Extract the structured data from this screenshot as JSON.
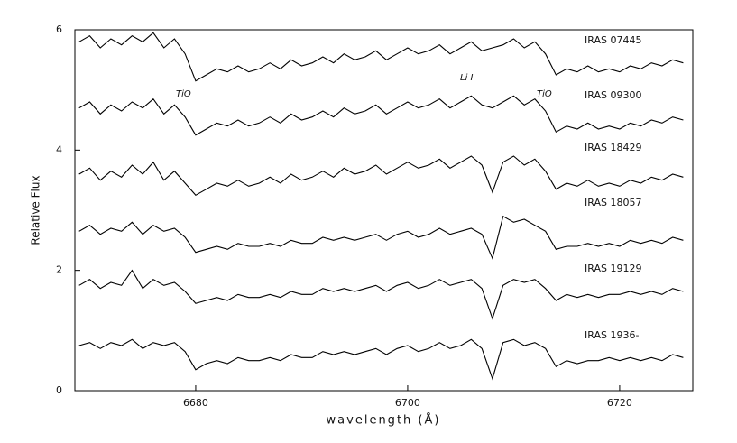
{
  "chart_data": {
    "type": "line",
    "x_label": "wavelength (Å)",
    "y_label": "Relative Flux",
    "annotations": [
      "TiO",
      "Li I",
      "TiO"
    ],
    "x": [
      6669,
      6670,
      6671,
      6672,
      6673,
      6674,
      6675,
      6676,
      6677,
      6678,
      6679,
      6680,
      6681,
      6682,
      6683,
      6684,
      6685,
      6686,
      6687,
      6688,
      6689,
      6690,
      6691,
      6692,
      6693,
      6694,
      6695,
      6696,
      6697,
      6698,
      6699,
      6700,
      6701,
      6702,
      6703,
      6704,
      6705,
      6706,
      6707,
      6708,
      6709,
      6710,
      6711,
      6712,
      6713,
      6714,
      6715,
      6716,
      6717,
      6718,
      6719,
      6720,
      6721,
      6722,
      6723,
      6724,
      6725,
      6726
    ],
    "xlim": [
      6668.6,
      6726.9
    ],
    "xticks": [
      6680,
      6700,
      6720
    ],
    "ylim": [
      0,
      6
    ],
    "yticks": [
      0,
      2,
      4,
      6
    ],
    "series": [
      {
        "name": "IRAS 07445",
        "color": "#000000",
        "values": [
          5.8,
          5.9,
          5.7,
          5.85,
          5.75,
          5.9,
          5.8,
          5.95,
          5.7,
          5.85,
          5.6,
          5.15,
          5.25,
          5.35,
          5.3,
          5.4,
          5.3,
          5.35,
          5.45,
          5.35,
          5.5,
          5.4,
          5.45,
          5.55,
          5.45,
          5.6,
          5.5,
          5.55,
          5.65,
          5.5,
          5.6,
          5.7,
          5.6,
          5.65,
          5.75,
          5.6,
          5.7,
          5.8,
          5.65,
          5.7,
          5.75,
          5.85,
          5.7,
          5.8,
          5.6,
          5.25,
          5.35,
          5.3,
          5.4,
          5.3,
          5.35,
          5.3,
          5.4,
          5.35,
          5.45,
          5.4,
          5.5,
          5.45
        ]
      },
      {
        "name": "IRAS 09300",
        "color": "#000000",
        "values": [
          4.7,
          4.8,
          4.6,
          4.75,
          4.65,
          4.8,
          4.7,
          4.85,
          4.6,
          4.75,
          4.55,
          4.25,
          4.35,
          4.45,
          4.4,
          4.5,
          4.4,
          4.45,
          4.55,
          4.45,
          4.6,
          4.5,
          4.55,
          4.65,
          4.55,
          4.7,
          4.6,
          4.65,
          4.75,
          4.6,
          4.7,
          4.8,
          4.7,
          4.75,
          4.85,
          4.7,
          4.8,
          4.9,
          4.75,
          4.7,
          4.8,
          4.9,
          4.75,
          4.85,
          4.65,
          4.3,
          4.4,
          4.35,
          4.45,
          4.35,
          4.4,
          4.35,
          4.45,
          4.4,
          4.5,
          4.45,
          4.55,
          4.5
        ]
      },
      {
        "name": "IRAS 18429",
        "color": "#000000",
        "values": [
          3.6,
          3.7,
          3.5,
          3.65,
          3.55,
          3.75,
          3.6,
          3.8,
          3.5,
          3.65,
          3.45,
          3.25,
          3.35,
          3.45,
          3.4,
          3.5,
          3.4,
          3.45,
          3.55,
          3.45,
          3.6,
          3.5,
          3.55,
          3.65,
          3.55,
          3.7,
          3.6,
          3.65,
          3.75,
          3.6,
          3.7,
          3.8,
          3.7,
          3.75,
          3.85,
          3.7,
          3.8,
          3.9,
          3.75,
          3.3,
          3.8,
          3.9,
          3.75,
          3.85,
          3.65,
          3.35,
          3.45,
          3.4,
          3.5,
          3.4,
          3.45,
          3.4,
          3.5,
          3.45,
          3.55,
          3.5,
          3.6,
          3.55
        ]
      },
      {
        "name": "IRAS 18057",
        "color": "#000000",
        "values": [
          2.65,
          2.75,
          2.6,
          2.7,
          2.65,
          2.8,
          2.6,
          2.75,
          2.65,
          2.7,
          2.55,
          2.3,
          2.35,
          2.4,
          2.35,
          2.45,
          2.4,
          2.4,
          2.45,
          2.4,
          2.5,
          2.45,
          2.45,
          2.55,
          2.5,
          2.55,
          2.5,
          2.55,
          2.6,
          2.5,
          2.6,
          2.65,
          2.55,
          2.6,
          2.7,
          2.6,
          2.65,
          2.7,
          2.6,
          2.2,
          2.9,
          2.8,
          2.85,
          2.75,
          2.65,
          2.35,
          2.4,
          2.4,
          2.45,
          2.4,
          2.45,
          2.4,
          2.5,
          2.45,
          2.5,
          2.45,
          2.55,
          2.5
        ]
      },
      {
        "name": "IRAS 19129",
        "color": "#000000",
        "values": [
          1.75,
          1.85,
          1.7,
          1.8,
          1.75,
          2.0,
          1.7,
          1.85,
          1.75,
          1.8,
          1.65,
          1.45,
          1.5,
          1.55,
          1.5,
          1.6,
          1.55,
          1.55,
          1.6,
          1.55,
          1.65,
          1.6,
          1.6,
          1.7,
          1.65,
          1.7,
          1.65,
          1.7,
          1.75,
          1.65,
          1.75,
          1.8,
          1.7,
          1.75,
          1.85,
          1.75,
          1.8,
          1.85,
          1.7,
          1.2,
          1.75,
          1.85,
          1.8,
          1.85,
          1.7,
          1.5,
          1.6,
          1.55,
          1.6,
          1.55,
          1.6,
          1.6,
          1.65,
          1.6,
          1.65,
          1.6,
          1.7,
          1.65
        ]
      },
      {
        "name": "IRAS 1936-",
        "color": "#000000",
        "values": [
          0.75,
          0.8,
          0.7,
          0.8,
          0.75,
          0.85,
          0.7,
          0.8,
          0.75,
          0.8,
          0.65,
          0.35,
          0.45,
          0.5,
          0.45,
          0.55,
          0.5,
          0.5,
          0.55,
          0.5,
          0.6,
          0.55,
          0.55,
          0.65,
          0.6,
          0.65,
          0.6,
          0.65,
          0.7,
          0.6,
          0.7,
          0.75,
          0.65,
          0.7,
          0.8,
          0.7,
          0.75,
          0.85,
          0.7,
          0.2,
          0.8,
          0.85,
          0.75,
          0.8,
          0.7,
          0.4,
          0.5,
          0.45,
          0.5,
          0.5,
          0.55,
          0.5,
          0.55,
          0.5,
          0.55,
          0.5,
          0.6,
          0.55
        ]
      }
    ]
  }
}
